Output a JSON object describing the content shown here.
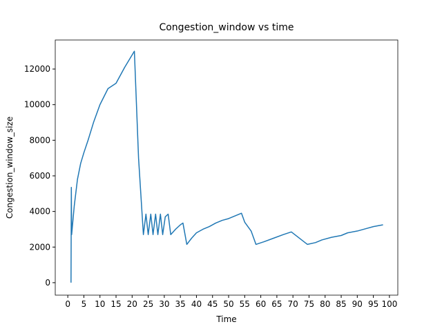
{
  "chart_data": {
    "type": "line",
    "title": "Congestion_window vs time",
    "x_label": "Time",
    "y_label": "Congestion_window_size",
    "xlim": [
      -3.9,
      102.6
    ],
    "ylim": [
      -700,
      13630
    ],
    "xticks": [
      0,
      5,
      10,
      15,
      20,
      25,
      30,
      35,
      40,
      45,
      50,
      55,
      60,
      65,
      70,
      75,
      80,
      85,
      90,
      95,
      100
    ],
    "yticks": [
      0,
      2000,
      4000,
      6000,
      8000,
      10000,
      12000
    ],
    "grid": false,
    "series": [
      {
        "name": "Congestion_window",
        "color": "#1f77b4",
        "x": [
          1,
          1.1,
          1.2,
          2,
          3,
          4,
          5,
          6.3,
          8,
          10,
          12.5,
          15,
          17.7,
          20.7,
          22,
          23.5,
          24.3,
          25,
          25.8,
          26.5,
          27.3,
          28,
          28.8,
          29.5,
          30.3,
          31.2,
          32,
          33.5,
          35,
          35.8,
          37,
          38.5,
          40,
          42,
          44,
          46,
          48,
          50,
          52,
          54,
          55,
          57,
          58.5,
          61,
          64,
          67,
          69.5,
          74.5,
          77,
          79,
          82,
          85,
          87,
          90,
          93,
          95,
          98
        ],
        "values": [
          0,
          5350,
          2700,
          4300,
          5800,
          6700,
          7300,
          8000,
          9000,
          10000,
          10900,
          11200,
          12100,
          13000,
          7000,
          2700,
          3850,
          2700,
          3850,
          2700,
          3850,
          2700,
          3850,
          2700,
          3700,
          3850,
          2700,
          3000,
          3250,
          3350,
          2150,
          2500,
          2800,
          3000,
          3150,
          3350,
          3500,
          3600,
          3750,
          3900,
          3400,
          2900,
          2150,
          2300,
          2500,
          2700,
          2850,
          2150,
          2250,
          2400,
          2550,
          2650,
          2800,
          2900,
          3050,
          3150,
          3250
        ]
      }
    ]
  }
}
